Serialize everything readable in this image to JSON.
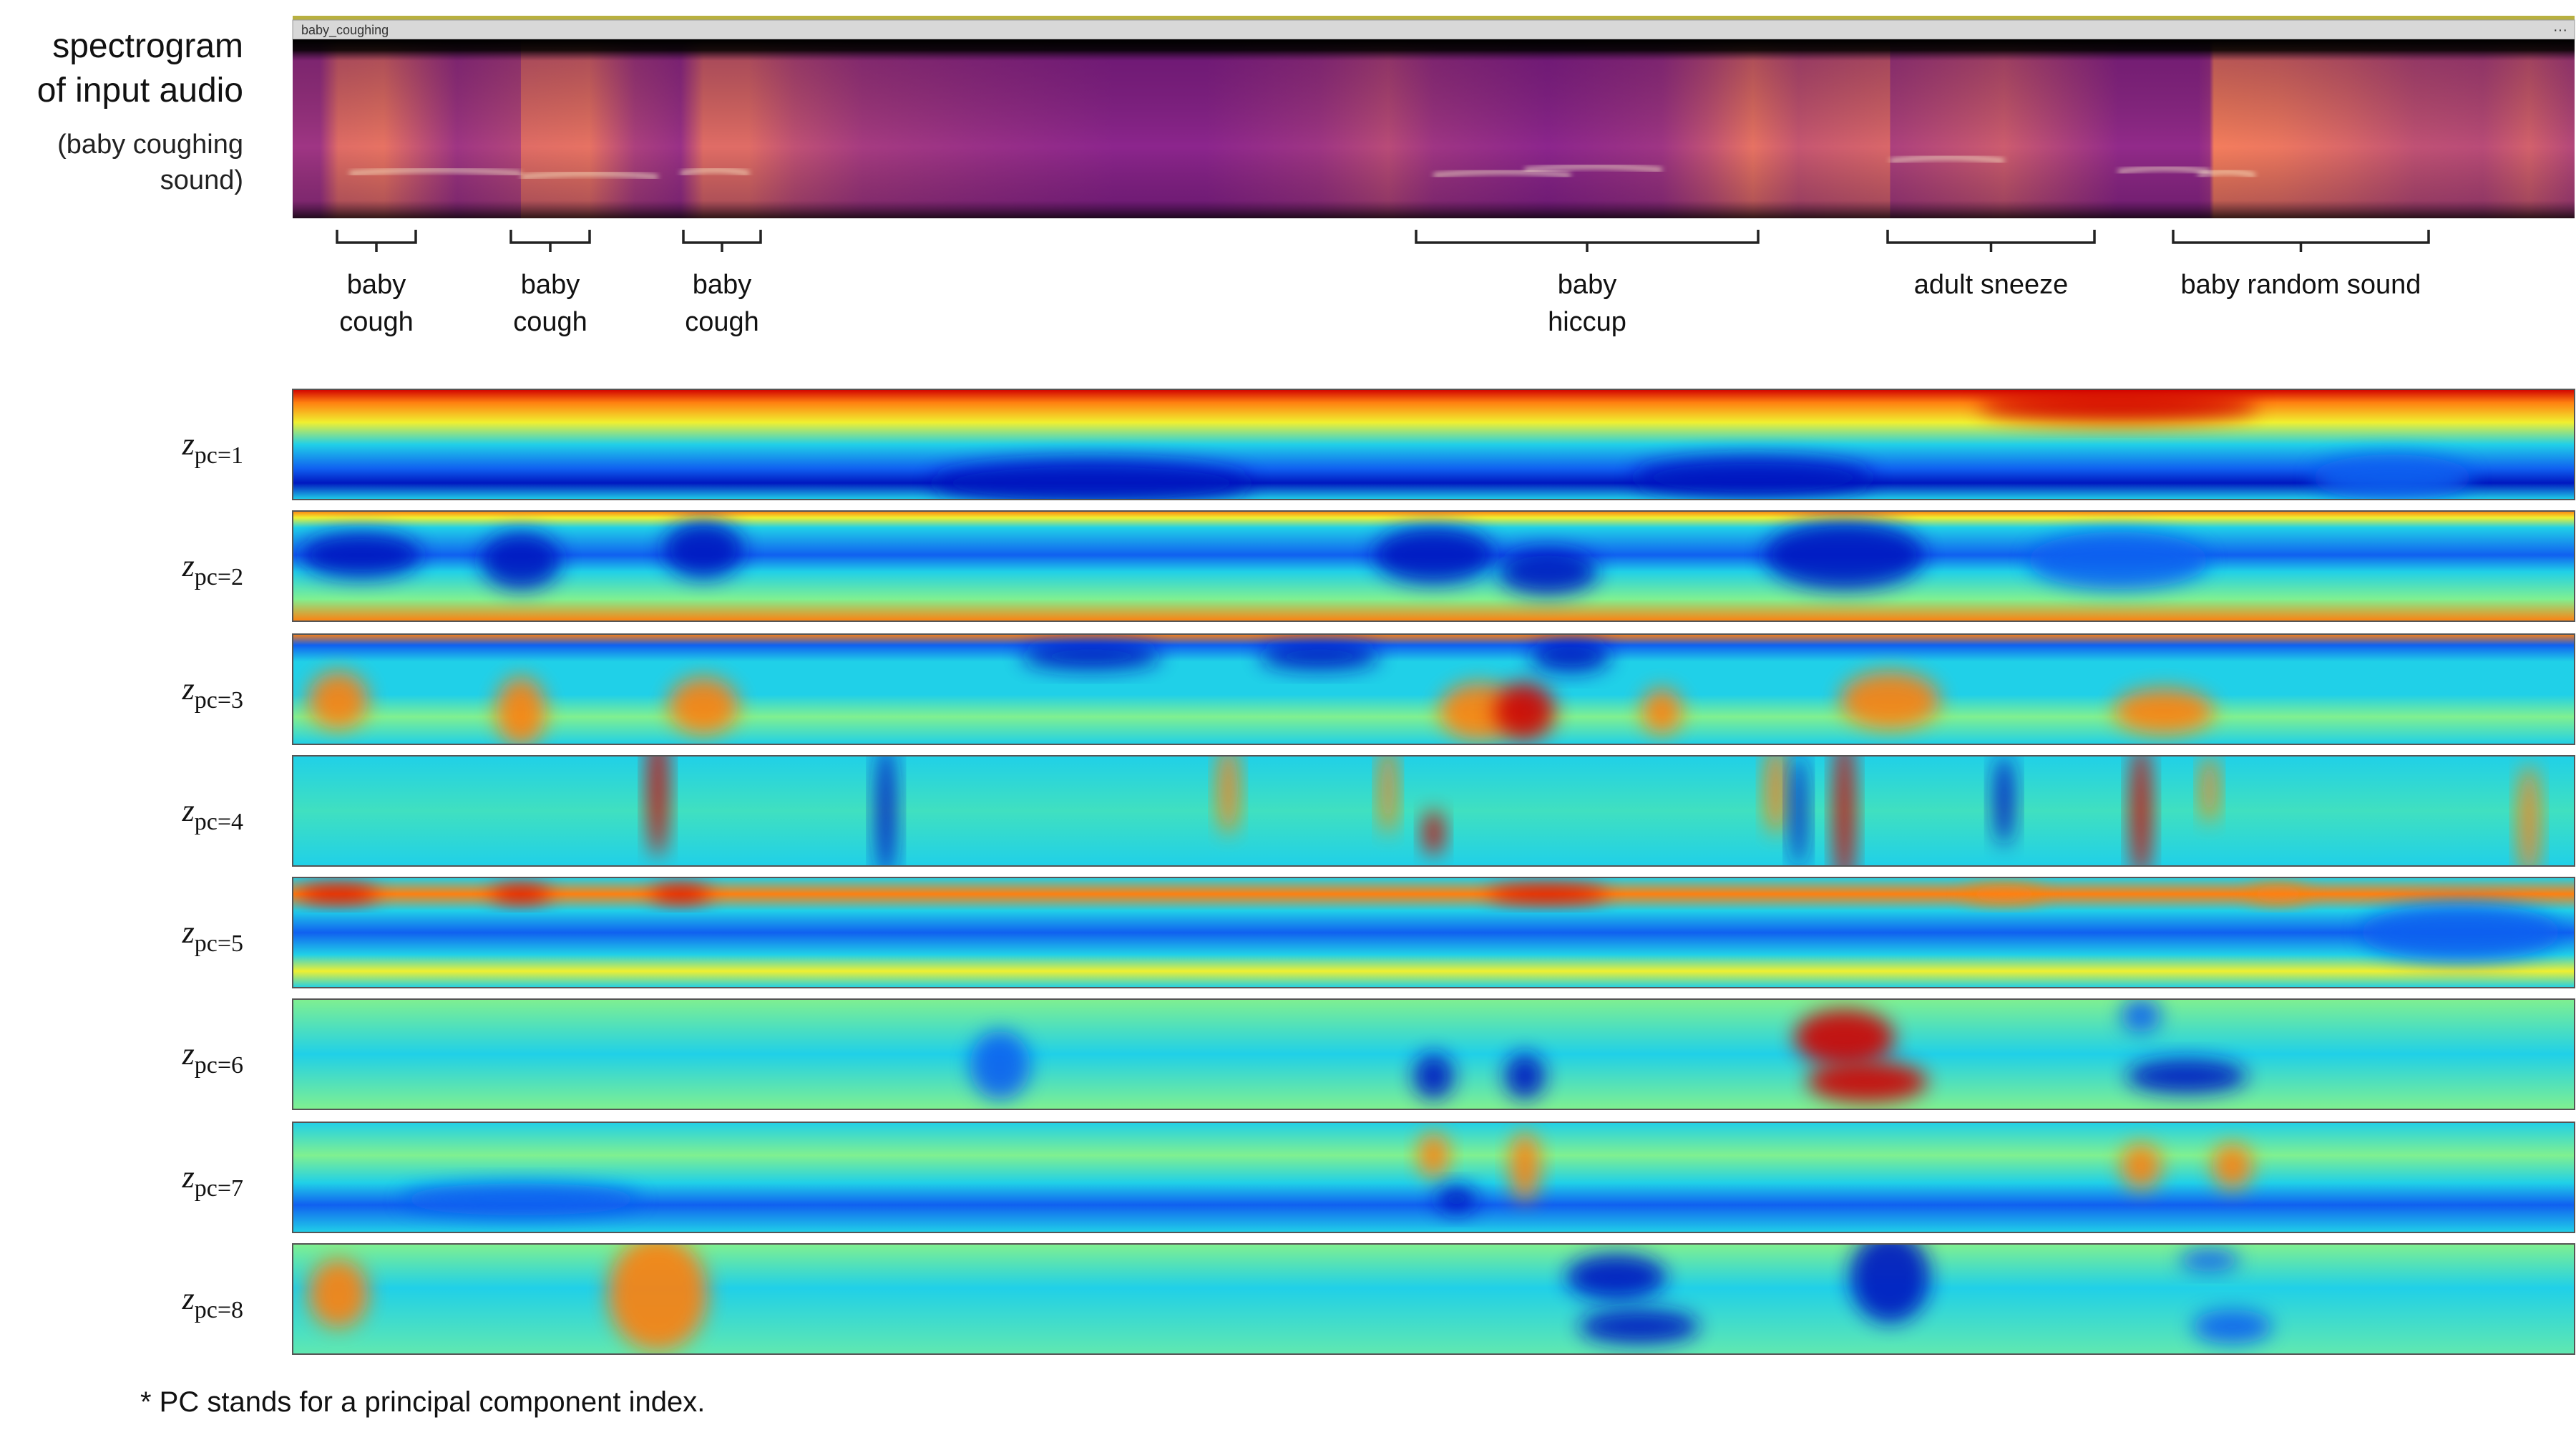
{
  "spectrogram": {
    "title_lines": [
      "spectrogram",
      "of input audio"
    ],
    "caption_lines": [
      "(baby coughing",
      "sound)"
    ],
    "window_title": "baby_coughing",
    "menu": "···"
  },
  "annotations": [
    {
      "lines": [
        "baby",
        "cough"
      ]
    },
    {
      "lines": [
        "baby",
        "cough"
      ]
    },
    {
      "lines": [
        "baby",
        "cough"
      ]
    },
    {
      "lines": [
        "baby",
        "hiccup"
      ]
    },
    {
      "lines": [
        "adult sneeze"
      ]
    },
    {
      "lines": [
        "baby random sound"
      ]
    }
  ],
  "components": [
    {
      "symbol": "z",
      "subscript": "pc=1"
    },
    {
      "symbol": "z",
      "subscript": "pc=2"
    },
    {
      "symbol": "z",
      "subscript": "pc=3"
    },
    {
      "symbol": "z",
      "subscript": "pc=4"
    },
    {
      "symbol": "z",
      "subscript": "pc=5"
    },
    {
      "symbol": "z",
      "subscript": "pc=6"
    },
    {
      "symbol": "z",
      "subscript": "pc=7"
    },
    {
      "symbol": "z",
      "subscript": "pc=8"
    }
  ],
  "footnote": "* PC stands for a principal component  index."
}
